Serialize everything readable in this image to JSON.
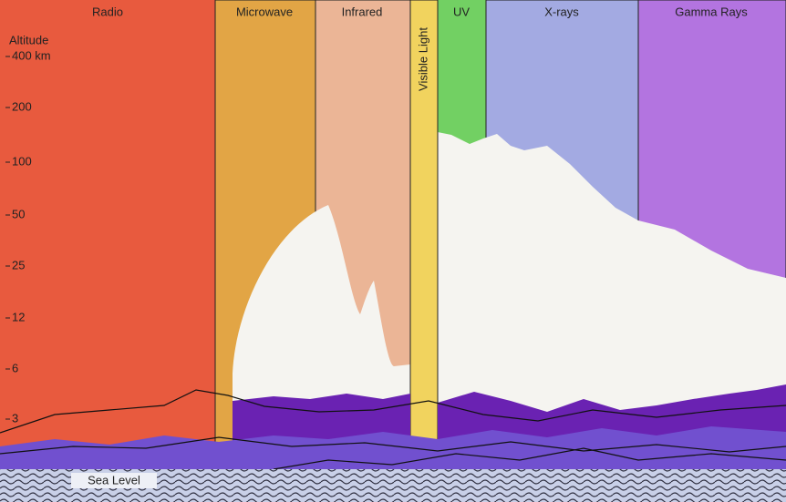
{
  "bands": [
    {
      "label": "Radio"
    },
    {
      "label": "Microwave"
    },
    {
      "label": "Infrared"
    },
    {
      "label": "Visible Light"
    },
    {
      "label": "UV"
    },
    {
      "label": "X-rays"
    },
    {
      "label": "Gamma Rays"
    }
  ],
  "altitude": {
    "title": "Altitude",
    "ticks": [
      "400 km",
      "200",
      "100",
      "50",
      "25",
      "12",
      "6",
      "3"
    ]
  },
  "sea_level": "Sea Level"
}
